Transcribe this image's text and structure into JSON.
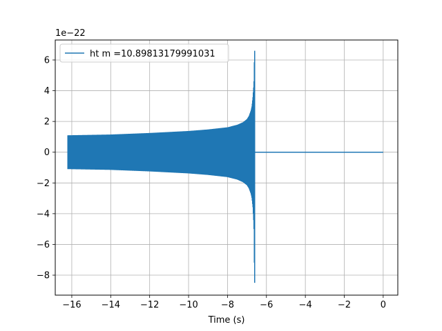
{
  "chart_data": {
    "type": "line",
    "title": "",
    "xlabel": "Time (s)",
    "ylabel": "",
    "y_offset_label": "1e−22",
    "xlim": [
      -16.85,
      0.75
    ],
    "ylim": [
      -9.3,
      7.3
    ],
    "x_ticks": [
      -16,
      -14,
      -12,
      -10,
      -8,
      -6,
      -4,
      -2,
      0
    ],
    "x_tick_labels": [
      "−16",
      "−14",
      "−12",
      "−10",
      "−8",
      "−6",
      "−4",
      "−2",
      "0"
    ],
    "y_ticks": [
      -8,
      -6,
      -4,
      -2,
      0,
      2,
      4,
      6
    ],
    "y_tick_labels": [
      "−8",
      "−6",
      "−4",
      "−2",
      "0",
      "2",
      "4",
      "6"
    ],
    "grid": true,
    "legend_position": "top-left",
    "series": [
      {
        "name": "ht m =10.89813179991031",
        "color": "#1f77b4",
        "signal": {
          "t_start": -16.2,
          "t_merger": -6.6,
          "t_end": 0.0,
          "envelope_x": [
            -16.2,
            -14,
            -12,
            -10,
            -9,
            -8,
            -7.5,
            -7.2,
            -7.0,
            -6.9,
            -6.8,
            -6.75,
            -6.7,
            -6.65,
            -6.62
          ],
          "envelope_upper": [
            1.1,
            1.15,
            1.25,
            1.38,
            1.48,
            1.62,
            1.78,
            1.95,
            2.15,
            2.35,
            2.7,
            3.0,
            3.6,
            4.5,
            6.6
          ],
          "envelope_lower": [
            -1.1,
            -1.15,
            -1.25,
            -1.38,
            -1.48,
            -1.62,
            -1.78,
            -1.95,
            -2.15,
            -2.35,
            -2.7,
            -3.0,
            -3.6,
            -4.8,
            -8.5
          ]
        }
      }
    ]
  }
}
